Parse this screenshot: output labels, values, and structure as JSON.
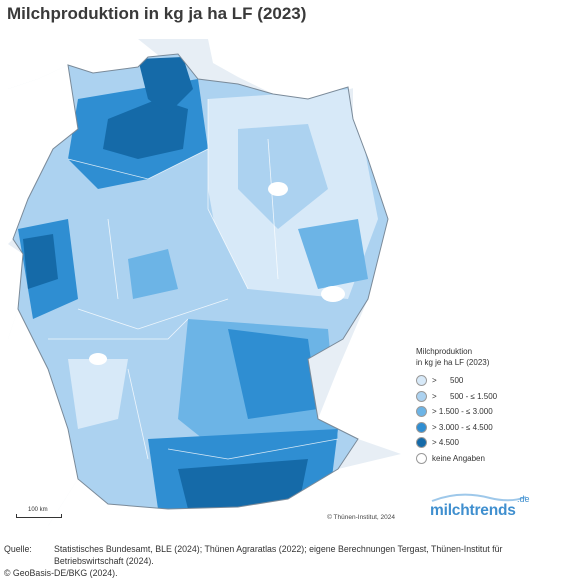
{
  "title": "Milchproduktion in kg ja ha LF (2023)",
  "map": {
    "credit": "© Thünen-Institut, 2024",
    "scale_label": "100 km",
    "colors": {
      "sea": "#e7eef5",
      "neighbor": "#ffffff",
      "border": "#ffffff"
    }
  },
  "legend": {
    "title_line1": "Milchproduktion",
    "title_line2": "in kg je ha LF (2023)",
    "items": [
      {
        "label": ">      500",
        "color": "#d7e9f8"
      },
      {
        "label": ">      500 - ≤ 1.500",
        "color": "#acd2f0"
      },
      {
        "label": "> 1.500 - ≤ 3.000",
        "color": "#6cb4e6"
      },
      {
        "label": "> 3.000 - ≤ 4.500",
        "color": "#2f8ed2"
      },
      {
        "label": "> 4.500",
        "color": "#156aa8"
      },
      {
        "label": "keine Angaben",
        "color": "#ffffff"
      }
    ]
  },
  "logo": {
    "name": "milchtrends",
    "superscript": ".de"
  },
  "source": {
    "label": "Quelle:",
    "line1": "Statistisches Bundesamt, BLE (2024); Thünen Agraratlas (2022); eigene Berechnungen Tergast, Thünen-Institut für",
    "line2": "Betriebswirtschaft (2024).",
    "line3": "© GeoBasis-DE/BKG (2024)."
  }
}
